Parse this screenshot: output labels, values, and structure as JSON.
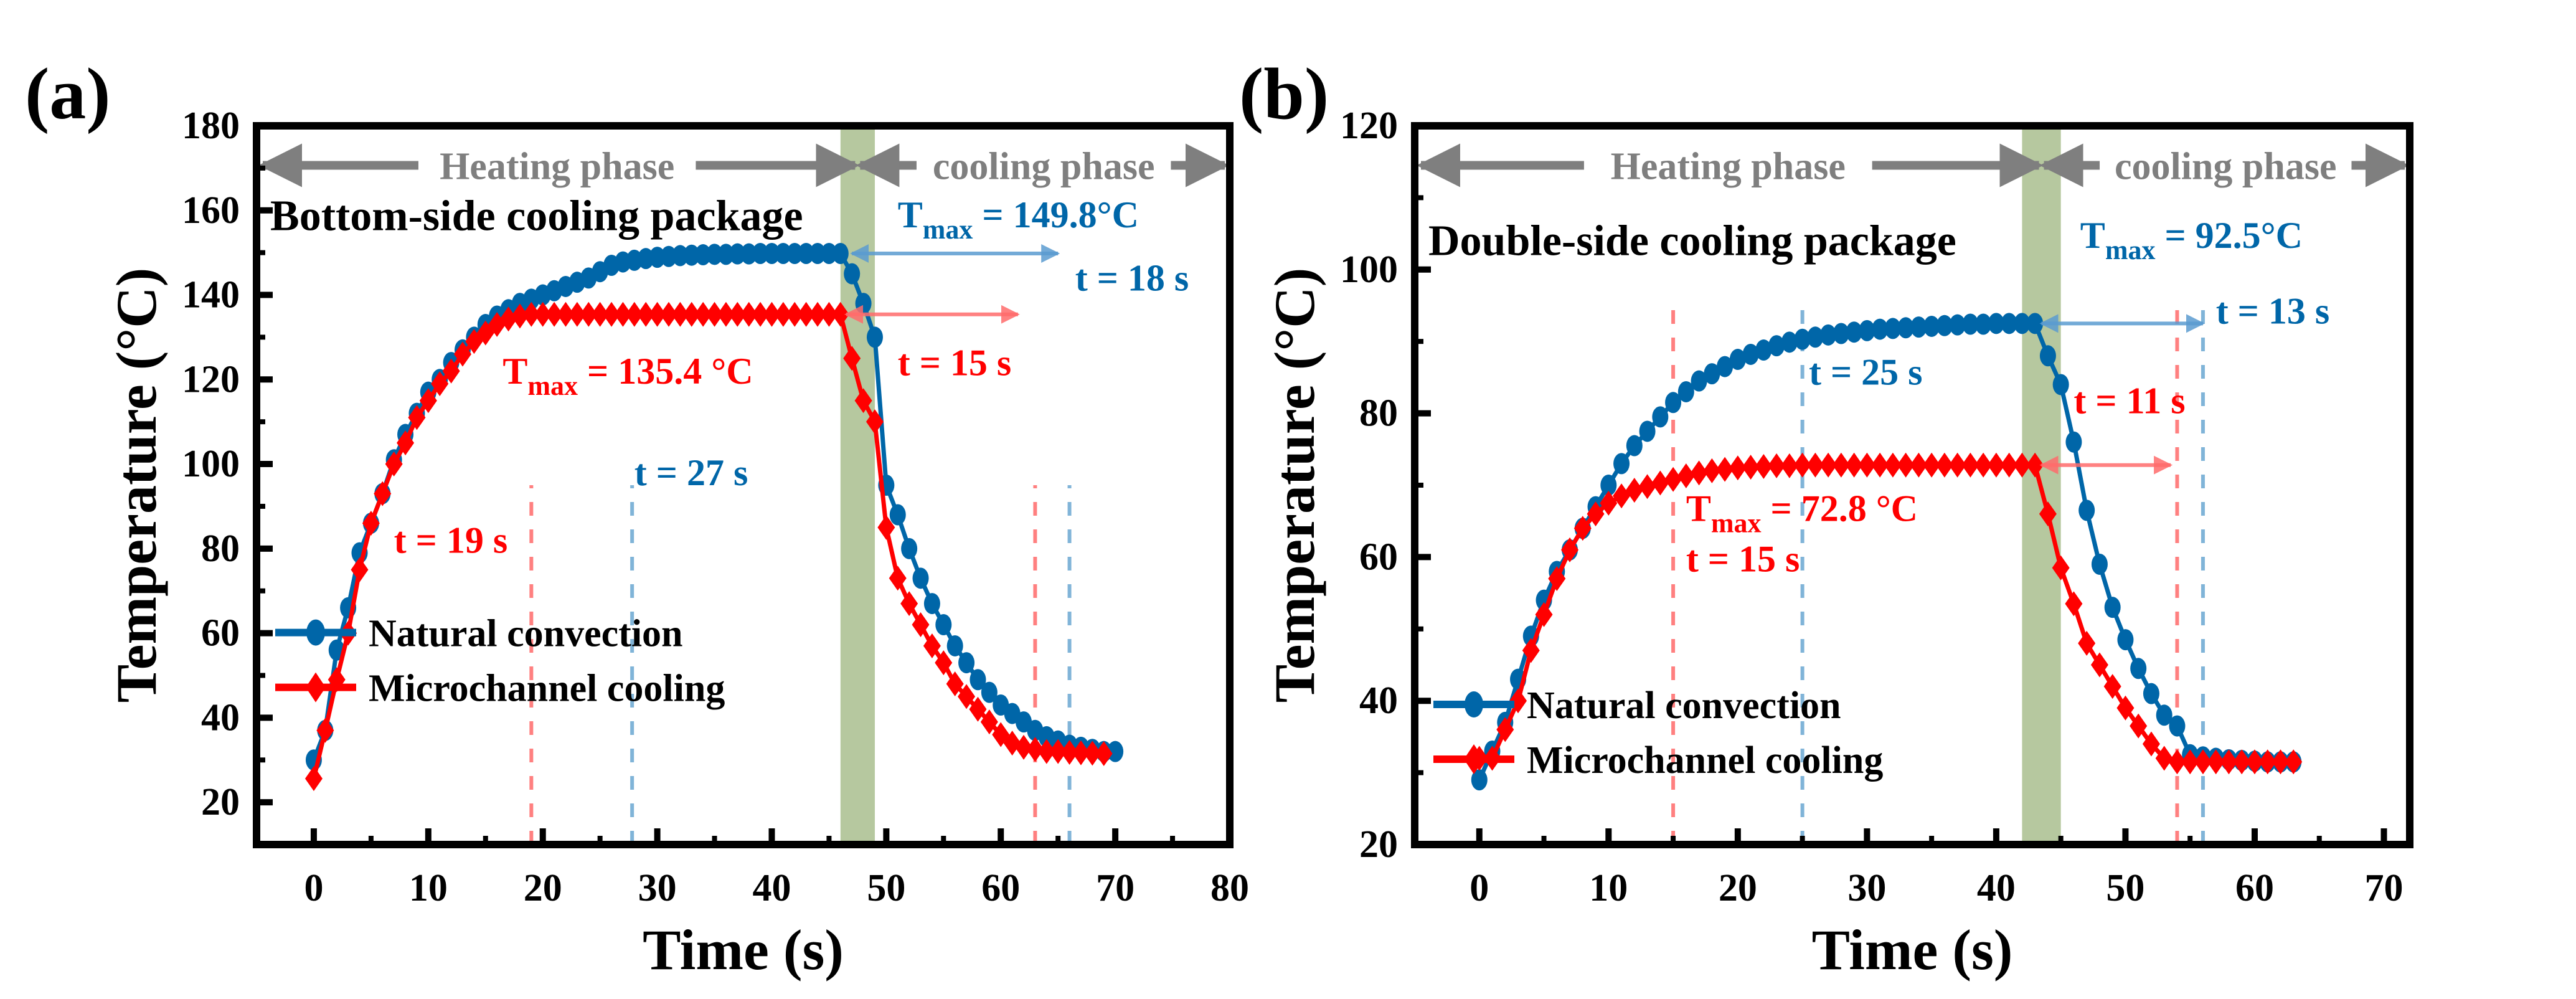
{
  "chart_data": [
    {
      "type": "line",
      "panel_label": "(a)",
      "title": "Bottom-side cooling package",
      "xlabel": "Time (s)",
      "ylabel": "Temperature (°C)",
      "xlim": [
        -5,
        80
      ],
      "ylim": [
        10,
        180
      ],
      "xticks": [
        0,
        10,
        20,
        30,
        40,
        50,
        60,
        70,
        80
      ],
      "yticks": [
        20,
        40,
        60,
        80,
        100,
        120,
        140,
        160,
        180
      ],
      "grid": false,
      "legend_position": "lower-left",
      "phase_labels": {
        "heating": "Heating phase",
        "cooling": "cooling phase",
        "boundary_band": [
          46,
          49
        ]
      },
      "series": [
        {
          "name": "Natural convection",
          "color": "#0066a8",
          "marker": "circle",
          "x": [
            0,
            1,
            2,
            3,
            4,
            5,
            6,
            7,
            8,
            9,
            10,
            11,
            12,
            13,
            14,
            15,
            16,
            17,
            18,
            19,
            20,
            21,
            22,
            23,
            24,
            25,
            26,
            27,
            28,
            29,
            30,
            31,
            32,
            33,
            34,
            35,
            36,
            37,
            38,
            39,
            40,
            41,
            42,
            43,
            44,
            45,
            46,
            47,
            48,
            49,
            50,
            51,
            52,
            53,
            54,
            55,
            56,
            57,
            58,
            59,
            60,
            61,
            62,
            63,
            64,
            65,
            66,
            67,
            68,
            69,
            70
          ],
          "values": [
            30,
            37,
            56,
            66,
            79,
            86,
            93,
            101,
            107,
            112,
            117,
            120,
            124,
            127,
            130,
            133,
            135,
            136.5,
            138,
            139,
            140,
            141,
            142,
            143,
            144,
            145.5,
            147,
            147.8,
            148.2,
            148.6,
            148.9,
            149.1,
            149.3,
            149.4,
            149.5,
            149.6,
            149.6,
            149.7,
            149.7,
            149.8,
            149.8,
            149.8,
            149.8,
            149.8,
            149.8,
            149.8,
            149.8,
            145,
            138,
            130,
            95,
            88,
            80,
            73,
            67,
            62,
            57,
            53,
            49,
            46,
            43,
            41,
            39,
            37,
            35.5,
            34.5,
            33.5,
            33,
            32.5,
            32,
            32
          ]
        },
        {
          "name": "Microchannel cooling",
          "color": "#ff0000",
          "marker": "diamond",
          "x": [
            0,
            1,
            2,
            3,
            4,
            5,
            6,
            7,
            8,
            9,
            10,
            11,
            12,
            13,
            14,
            15,
            16,
            17,
            18,
            19,
            20,
            21,
            22,
            23,
            24,
            25,
            26,
            27,
            28,
            29,
            30,
            31,
            32,
            33,
            34,
            35,
            36,
            37,
            38,
            39,
            40,
            41,
            42,
            43,
            44,
            45,
            46,
            47,
            48,
            49,
            50,
            51,
            52,
            53,
            54,
            55,
            56,
            57,
            58,
            59,
            60,
            61,
            62,
            63,
            64,
            65,
            66,
            67,
            68,
            69
          ],
          "values": [
            25.6,
            37,
            49,
            60,
            75,
            86,
            93,
            100,
            105,
            111,
            115,
            119,
            122,
            126,
            129,
            131,
            133,
            134.3,
            135,
            135.4,
            135.4,
            135.4,
            135.4,
            135.4,
            135.4,
            135.4,
            135.4,
            135.4,
            135.4,
            135.4,
            135.4,
            135.4,
            135.4,
            135.4,
            135.4,
            135.4,
            135.4,
            135.4,
            135.4,
            135.4,
            135.4,
            135.4,
            135.4,
            135.4,
            135.4,
            135.4,
            135.4,
            125,
            115,
            110,
            85,
            73,
            67,
            62,
            57,
            53,
            48,
            45,
            42,
            39,
            36,
            34,
            33,
            32.5,
            32,
            32,
            31.8,
            31.7,
            31.6,
            31.5
          ]
        }
      ],
      "reference_lines": [
        {
          "x": 19,
          "color": "#ff8080"
        },
        {
          "x": 27.8,
          "color": "#80b4d8"
        },
        {
          "x": 63,
          "color": "#ff8080"
        },
        {
          "x": 66,
          "color": "#80b4d8"
        }
      ],
      "span_arrows": [
        {
          "y": 149.8,
          "x0": 47,
          "x1": 65,
          "color": "#5a9bd0"
        },
        {
          "y": 135.4,
          "x0": 46.5,
          "x1": 61.5,
          "color": "#ff6b6b"
        }
      ],
      "annotations": [
        {
          "id": "tmax_nc",
          "prefix": "T",
          "sub": "max",
          "text": " = 149.8°C",
          "color": "#0066a8",
          "x": 51,
          "y": 156
        },
        {
          "id": "t_nc_cool",
          "text": "t = 18 s",
          "color": "#0066a8",
          "x": 66.5,
          "y": 141
        },
        {
          "id": "tmax_mc",
          "prefix": "T",
          "sub": "max",
          "text": " = 135.4 °C",
          "color": "#ff0000",
          "x": 16.5,
          "y": 119
        },
        {
          "id": "t_mc_cool",
          "text": "t = 15 s",
          "color": "#ff0000",
          "x": 51,
          "y": 121
        },
        {
          "id": "t_nc_heat",
          "text": "t = 27 s",
          "color": "#0066a8",
          "x": 28,
          "y": 95
        },
        {
          "id": "t_mc_heat",
          "text": "t = 19 s",
          "color": "#ff0000",
          "x": 7,
          "y": 79
        }
      ]
    },
    {
      "type": "line",
      "panel_label": "(b)",
      "title": "Double-side cooling  package",
      "xlabel": "Time (s)",
      "ylabel": "Temperature (°C)",
      "xlim": [
        -5,
        72
      ],
      "ylim": [
        20,
        120
      ],
      "xticks": [
        0,
        10,
        20,
        30,
        40,
        50,
        60,
        70
      ],
      "yticks": [
        20,
        40,
        60,
        80,
        100,
        120
      ],
      "grid": false,
      "legend_position": "lower-left",
      "phase_labels": {
        "heating": "Heating phase",
        "cooling": "cooling phase",
        "boundary_band": [
          42,
          45
        ]
      },
      "series": [
        {
          "name": "Natural convection",
          "color": "#0066a8",
          "marker": "circle",
          "x": [
            0,
            1,
            2,
            3,
            4,
            5,
            6,
            7,
            8,
            9,
            10,
            11,
            12,
            13,
            14,
            15,
            16,
            17,
            18,
            19,
            20,
            21,
            22,
            23,
            24,
            25,
            26,
            27,
            28,
            29,
            30,
            31,
            32,
            33,
            34,
            35,
            36,
            37,
            38,
            39,
            40,
            41,
            42,
            43,
            44,
            45,
            46,
            47,
            48,
            49,
            50,
            51,
            52,
            53,
            54,
            55,
            56,
            57,
            58,
            59,
            60,
            61,
            62,
            63
          ],
          "values": [
            29,
            33,
            37,
            43,
            49,
            54,
            58,
            61,
            64,
            67,
            70,
            73,
            75.5,
            77.5,
            79.5,
            81.5,
            83,
            84.5,
            85.5,
            86.5,
            87.5,
            88.2,
            88.8,
            89.4,
            89.9,
            90.3,
            90.6,
            90.9,
            91.1,
            91.3,
            91.5,
            91.7,
            91.8,
            91.9,
            92,
            92.1,
            92.2,
            92.3,
            92.4,
            92.4,
            92.5,
            92.5,
            92.5,
            92.5,
            88,
            84,
            76,
            66.5,
            59,
            53,
            48.5,
            44.5,
            41,
            38,
            36.5,
            32.5,
            32.2,
            32,
            31.8,
            31.7,
            31.6,
            31.5,
            31.5,
            31.5
          ]
        },
        {
          "name": "Microchannel cooling",
          "color": "#ff0000",
          "marker": "diamond",
          "x": [
            0,
            1,
            2,
            3,
            4,
            5,
            6,
            7,
            8,
            9,
            10,
            11,
            12,
            13,
            14,
            15,
            16,
            17,
            18,
            19,
            20,
            21,
            22,
            23,
            24,
            25,
            26,
            27,
            28,
            29,
            30,
            31,
            32,
            33,
            34,
            35,
            36,
            37,
            38,
            39,
            40,
            41,
            42,
            43,
            44,
            45,
            46,
            47,
            48,
            49,
            50,
            51,
            52,
            53,
            54,
            55,
            56,
            57,
            58,
            59,
            60,
            61,
            62,
            63
          ],
          "values": [
            32,
            32,
            36,
            40,
            47,
            52,
            57,
            61,
            64,
            66,
            67.5,
            68.5,
            69.3,
            69.8,
            70.3,
            70.8,
            71.3,
            71.7,
            72,
            72.2,
            72.4,
            72.5,
            72.6,
            72.7,
            72.7,
            72.8,
            72.8,
            72.8,
            72.8,
            72.8,
            72.8,
            72.8,
            72.8,
            72.8,
            72.8,
            72.8,
            72.8,
            72.8,
            72.8,
            72.8,
            72.8,
            72.8,
            72.8,
            72.8,
            66,
            58.5,
            53.5,
            48,
            45,
            42,
            39,
            36.5,
            34,
            32,
            31.5,
            31.5,
            31.5,
            31.5,
            31.5,
            31.5,
            31.5,
            31.5,
            31.5,
            31.5
          ]
        }
      ],
      "reference_lines": [
        {
          "x": 15,
          "color": "#ff8080"
        },
        {
          "x": 25,
          "color": "#80b4d8"
        },
        {
          "x": 54,
          "color": "#ff8080"
        },
        {
          "x": 56,
          "color": "#80b4d8"
        }
      ],
      "span_arrows": [
        {
          "y": 92.5,
          "x0": 43.5,
          "x1": 56,
          "color": "#5a9bd0"
        },
        {
          "y": 72.8,
          "x0": 43.5,
          "x1": 53.5,
          "color": "#ff6b6b"
        }
      ],
      "annotations": [
        {
          "id": "tmax_nc",
          "prefix": "T",
          "sub": "max",
          "text": " = 92.5°C",
          "color": "#0066a8",
          "x": 46.5,
          "y": 103
        },
        {
          "id": "t_nc_cool",
          "text": "t = 13 s",
          "color": "#0066a8",
          "x": 57,
          "y": 92.5
        },
        {
          "id": "t_nc_heat",
          "text": "t = 25 s",
          "color": "#0066a8",
          "x": 25.5,
          "y": 84
        },
        {
          "id": "t_mc_cool",
          "text": "t = 11 s",
          "color": "#ff0000",
          "x": 46,
          "y": 80
        },
        {
          "id": "tmax_mc",
          "prefix": "T",
          "sub": "max",
          "text": " = 72.8 °C",
          "color": "#ff0000",
          "x": 16,
          "y": 65
        },
        {
          "id": "t_mc_heat",
          "text": "t = 15 s",
          "color": "#ff0000",
          "x": 16,
          "y": 58
        }
      ]
    }
  ]
}
